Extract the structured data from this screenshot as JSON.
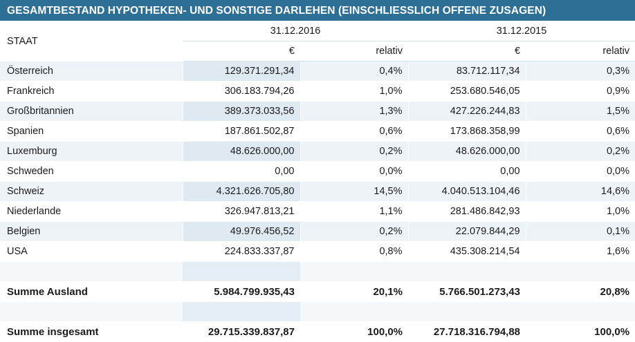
{
  "title": "GESAMTBESTAND HYPOTHEKEN- UND SONSTIGE DARLEHEN (EINSCHLIESSLICH OFFENE ZUSAGEN)",
  "header": {
    "staat": "STAAT",
    "date_2016": "31.12.2016",
    "date_2015": "31.12.2015",
    "euro": "€",
    "relativ": "relativ"
  },
  "rows": [
    {
      "staat": "Österreich",
      "v2016": "129.371.291,34",
      "r2016": "0,4%",
      "v2015": "83.712.117,34",
      "r2015": "0,3%"
    },
    {
      "staat": "Frankreich",
      "v2016": "306.183.794,26",
      "r2016": "1,0%",
      "v2015": "253.680.546,05",
      "r2015": "0,9%"
    },
    {
      "staat": "Großbritannien",
      "v2016": "389.373.033,56",
      "r2016": "1,3%",
      "v2015": "427.226.244,83",
      "r2015": "1,5%"
    },
    {
      "staat": "Spanien",
      "v2016": "187.861.502,87",
      "r2016": "0,6%",
      "v2015": "173.868.358,99",
      "r2015": "0,6%"
    },
    {
      "staat": "Luxemburg",
      "v2016": "48.626.000,00",
      "r2016": "0,2%",
      "v2015": "48.626.000,00",
      "r2015": "0,2%"
    },
    {
      "staat": "Schweden",
      "v2016": "0,00",
      "r2016": "0,0%",
      "v2015": "0,00",
      "r2015": "0,0%"
    },
    {
      "staat": "Schweiz",
      "v2016": "4.321.626.705,80",
      "r2016": "14,5%",
      "v2015": "4.040.513.104,46",
      "r2015": "14,6%"
    },
    {
      "staat": "Niederlande",
      "v2016": "326.947.813,21",
      "r2016": "1,1%",
      "v2015": "281.486.842,93",
      "r2015": "1,0%"
    },
    {
      "staat": "Belgien",
      "v2016": "49.976.456,52",
      "r2016": "0,2%",
      "v2015": "22.079.844,29",
      "r2015": "0,1%"
    },
    {
      "staat": "USA",
      "v2016": "224.833.337,87",
      "r2016": "0,8%",
      "v2015": "435.308.214,54",
      "r2015": "1,6%"
    }
  ],
  "summe_ausland": {
    "label": "Summe Ausland",
    "v2016": "5.984.799.935,43",
    "r2016": "20,1%",
    "v2015": "5.766.501.273,43",
    "r2015": "20,8%"
  },
  "summe_insgesamt": {
    "label": "Summe insgesamt",
    "v2016": "29.715.339.837,87",
    "r2016": "100,0%",
    "v2015": "27.718.316.794,88",
    "r2015": "100,0%"
  }
}
